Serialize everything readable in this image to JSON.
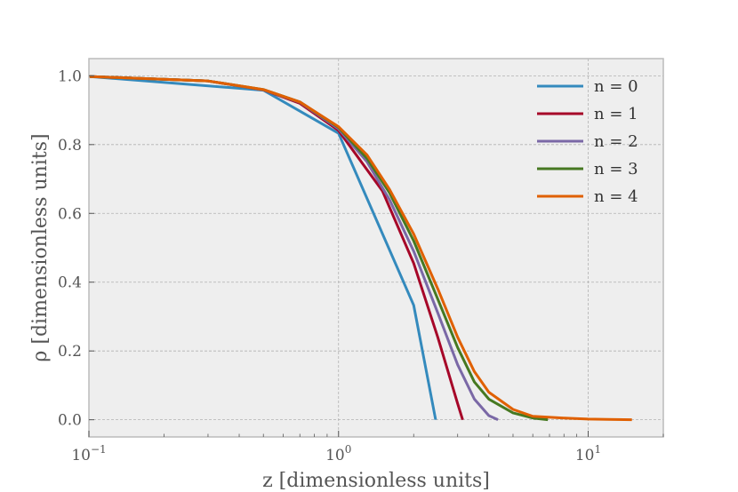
{
  "chart_data": {
    "type": "line",
    "title": "",
    "xlabel": "z [dimensionless units]",
    "ylabel": "ρ [dimensionless units]",
    "xscale": "log",
    "xlim": [
      0.1,
      20
    ],
    "ylim": [
      -0.05,
      1.05
    ],
    "grid": true,
    "legend_position": "top-right",
    "x_ticks": [
      {
        "base": "10",
        "exp": "−1"
      },
      {
        "base": "10",
        "exp": "0"
      },
      {
        "base": "10",
        "exp": "1"
      }
    ],
    "y_ticks": [
      "0.0",
      "0.2",
      "0.4",
      "0.6",
      "0.8",
      "1.0"
    ],
    "series": [
      {
        "name": "n = 0",
        "color": "#348abd",
        "x": [
          0.1,
          0.5,
          1.0,
          2.0,
          2.449
        ],
        "y": [
          0.998,
          0.958,
          0.833,
          0.333,
          0.0
        ]
      },
      {
        "name": "n = 1",
        "color": "#a60628",
        "x": [
          0.1,
          0.3,
          0.5,
          0.7,
          1.0,
          1.5,
          2.0,
          2.5,
          3.0,
          3.1416
        ],
        "y": [
          0.998,
          0.985,
          0.959,
          0.92,
          0.841,
          0.665,
          0.455,
          0.239,
          0.047,
          0.0
        ]
      },
      {
        "name": "n = 2",
        "color": "#7a68a6",
        "x": [
          0.1,
          0.3,
          0.5,
          0.7,
          1.0,
          1.3,
          1.6,
          2.0,
          2.5,
          3.0,
          3.5,
          4.0,
          4.353
        ],
        "y": [
          0.998,
          0.985,
          0.959,
          0.923,
          0.846,
          0.75,
          0.64,
          0.49,
          0.31,
          0.16,
          0.06,
          0.012,
          0.0
        ]
      },
      {
        "name": "n = 3",
        "color": "#467821",
        "x": [
          0.1,
          0.3,
          0.5,
          0.7,
          1.0,
          1.3,
          1.6,
          2.0,
          2.5,
          3.0,
          3.5,
          4.0,
          5.0,
          6.0,
          6.897
        ],
        "y": [
          0.998,
          0.985,
          0.96,
          0.924,
          0.85,
          0.76,
          0.66,
          0.52,
          0.35,
          0.21,
          0.11,
          0.06,
          0.02,
          0.005,
          0.0
        ]
      },
      {
        "name": "n = 4",
        "color": "#e06000",
        "x": [
          0.1,
          0.3,
          0.5,
          0.7,
          1.0,
          1.3,
          1.6,
          2.0,
          2.5,
          3.0,
          3.5,
          4.0,
          5.0,
          6.0,
          8.0,
          10.0,
          12.0,
          14.97
        ],
        "y": [
          0.998,
          0.985,
          0.96,
          0.924,
          0.852,
          0.77,
          0.67,
          0.54,
          0.38,
          0.24,
          0.14,
          0.08,
          0.03,
          0.01,
          0.005,
          0.002,
          0.001,
          0.0
        ]
      }
    ]
  }
}
